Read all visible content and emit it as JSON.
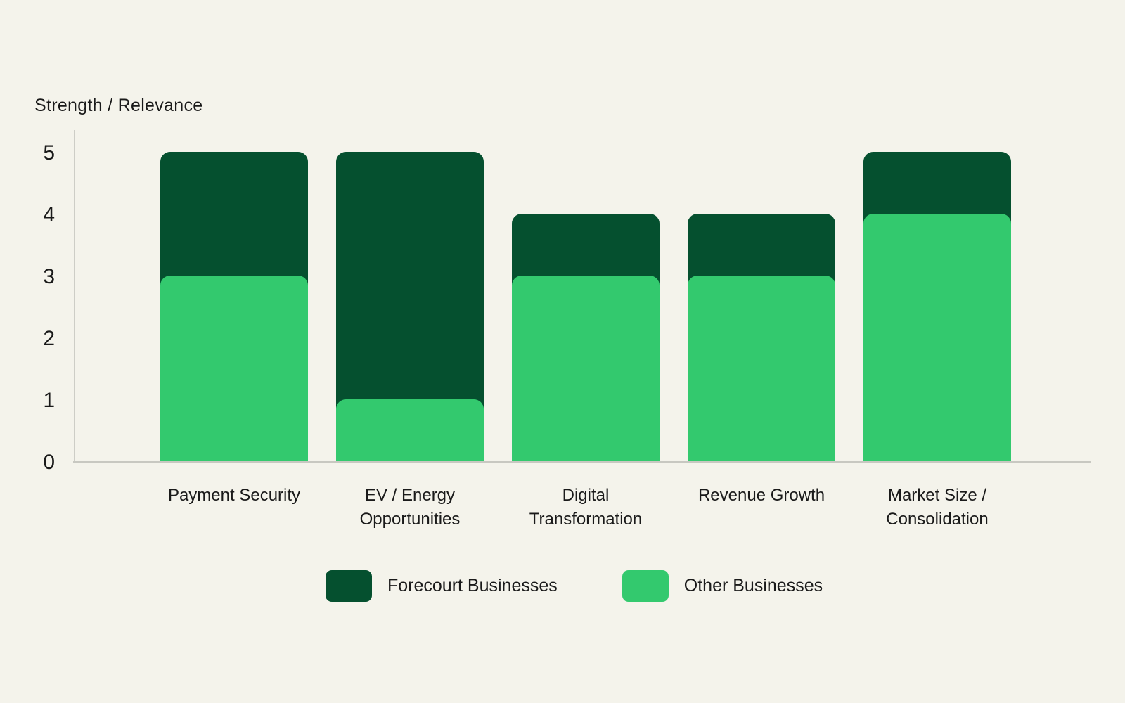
{
  "page": {
    "background": "#f4f3eb"
  },
  "colors": {
    "background": "#f4f3eb",
    "axis_line": "#cdcdc6",
    "baseline": "#c8c8c1",
    "text": "#1a1a1a",
    "forecourt_green_dark": "#05502f",
    "other_green_light": "#33c96e"
  },
  "chart_data": {
    "type": "bar",
    "title": "",
    "ylabel": "Strength / Relevance",
    "xlabel": "",
    "categories": [
      "Payment Security",
      "EV / Energy Opportunities",
      "Digital Transformation",
      "Revenue Growth",
      "Market Size / Consolidation"
    ],
    "category_lines": [
      [
        "Payment Security"
      ],
      [
        "EV / Energy",
        "Opportunities"
      ],
      [
        "Digital",
        "Transformation"
      ],
      [
        "Revenue Growth"
      ],
      [
        "Market Size /",
        "Consolidation"
      ]
    ],
    "series": [
      {
        "name": "Forecourt Businesses",
        "color": "#05502f",
        "values": [
          5,
          5,
          4,
          4,
          5
        ]
      },
      {
        "name": "Other Businesses",
        "color": "#33c96e",
        "values": [
          3,
          1,
          3,
          3,
          4
        ]
      }
    ],
    "ylim": [
      0,
      5
    ],
    "yticks": [
      0,
      1,
      2,
      3,
      4,
      5
    ],
    "grid": false,
    "legend_position": "bottom",
    "bar_style": "overlapped, rounded top corners"
  }
}
